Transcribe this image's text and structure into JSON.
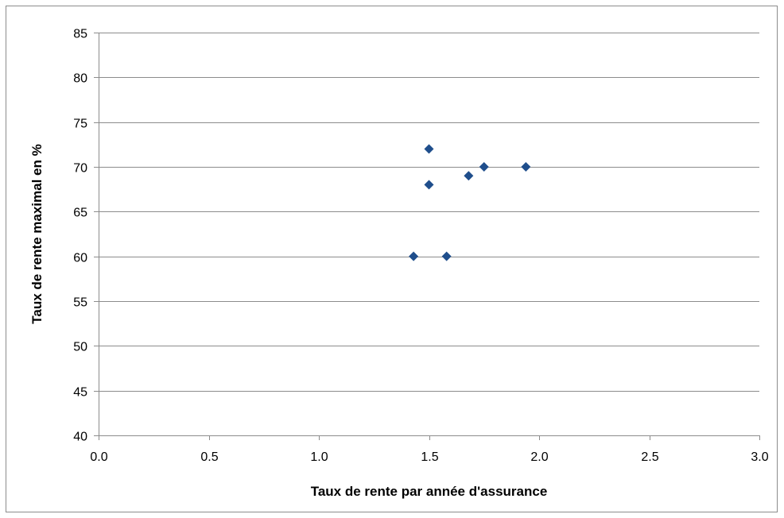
{
  "chart_data": {
    "type": "scatter",
    "title": "",
    "xlabel": "Taux de rente par année d'assurance",
    "ylabel": "Taux de rente maximal en %",
    "xlim": [
      0.0,
      3.0
    ],
    "ylim": [
      40,
      85
    ],
    "x_ticks": [
      "0.0",
      "0.5",
      "1.0",
      "1.5",
      "2.0",
      "2.5",
      "3.0"
    ],
    "y_ticks": [
      "40",
      "45",
      "50",
      "55",
      "60",
      "65",
      "70",
      "75",
      "80",
      "85"
    ],
    "grid": "horizontal",
    "legend": "none",
    "series": [
      {
        "marker": "diamond",
        "color": "#1f4e8c",
        "points": [
          {
            "x": 1.43,
            "y": 60
          },
          {
            "x": 1.5,
            "y": 72
          },
          {
            "x": 1.5,
            "y": 68
          },
          {
            "x": 1.58,
            "y": 60
          },
          {
            "x": 1.68,
            "y": 69
          },
          {
            "x": 1.75,
            "y": 70
          },
          {
            "x": 1.94,
            "y": 70
          }
        ]
      }
    ]
  },
  "colors": {
    "marker": "#1f4e8c",
    "gridline": "#8c8c8c",
    "axis": "#8c8c8c",
    "frame": "#8c8c8c"
  }
}
